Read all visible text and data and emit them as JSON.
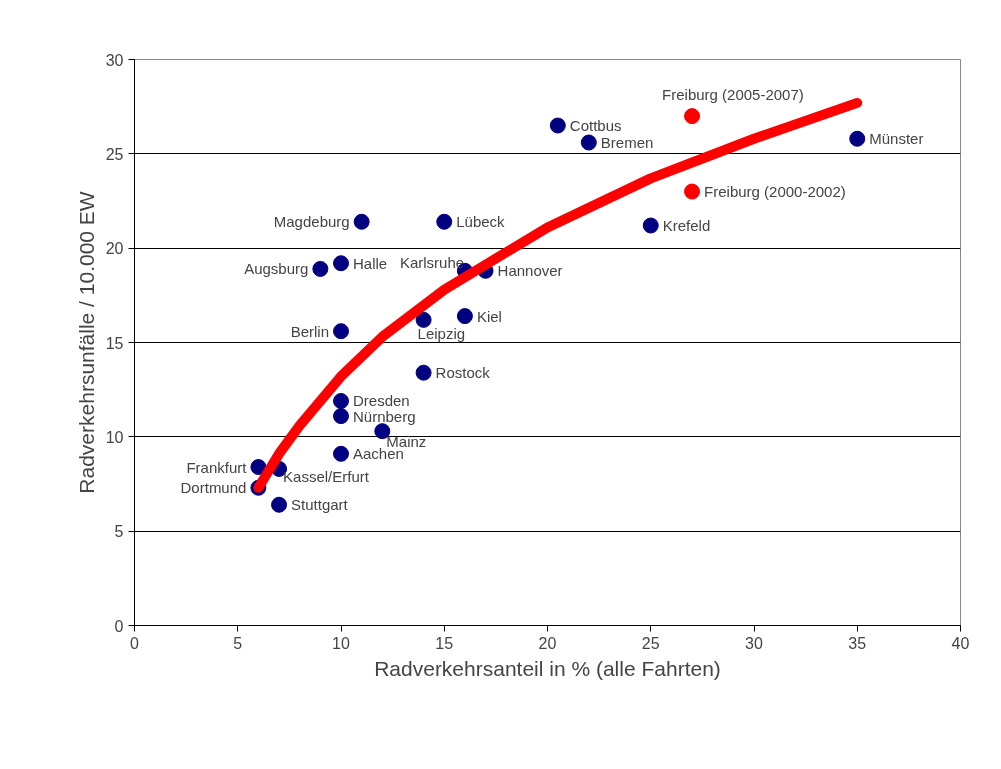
{
  "chart_data": {
    "type": "scatter",
    "xlabel": "Radverkehrsanteil in % (alle Fahrten)",
    "ylabel": "Radverkehrsunfälle / 10.000 EW",
    "xlim": [
      0,
      40
    ],
    "ylim": [
      0,
      30
    ],
    "xticks": [
      0,
      5,
      10,
      15,
      20,
      25,
      30,
      35,
      40
    ],
    "yticks": [
      0,
      5,
      10,
      15,
      20,
      25,
      30
    ],
    "grid": "y",
    "marker": "circle",
    "series": [
      {
        "color": "#000080",
        "x": [
          6,
          6,
          7,
          7,
          10,
          12,
          10,
          10,
          14,
          10,
          14,
          16,
          16,
          17,
          9,
          10,
          11,
          15,
          25,
          20.5,
          22,
          35
        ],
        "values": [
          8.4,
          7.3,
          8.3,
          6.4,
          9.1,
          10.3,
          11.1,
          11.9,
          13.4,
          15.6,
          16.2,
          16.4,
          18.8,
          18.8,
          18.9,
          19.2,
          21.4,
          21.4,
          21.2,
          26.5,
          25.6,
          25.8
        ]
      },
      {
        "color": "#ff0000",
        "x": [
          27,
          27
        ],
        "values": [
          27.0,
          23.0
        ]
      },
      {
        "type": "line",
        "marker": "none",
        "color": "#ff0000",
        "x": [
          6,
          7,
          8,
          10,
          12,
          15,
          20,
          25,
          30,
          35
        ],
        "values": [
          7.3,
          9.1,
          10.6,
          13.2,
          15.3,
          17.8,
          21.1,
          23.7,
          25.8,
          27.7
        ]
      }
    ],
    "annotations": [
      {
        "text": "Frankfurt",
        "x": 6,
        "y": 8.4
      },
      {
        "text": "Dortmund",
        "x": 6,
        "y": 7.3
      },
      {
        "text": "Kassel/Erfurt",
        "x": 7,
        "y": 8.3
      },
      {
        "text": "Stuttgart",
        "x": 7,
        "y": 6.4
      },
      {
        "text": "Aachen",
        "x": 10,
        "y": 9.1
      },
      {
        "text": "Mainz",
        "x": 12,
        "y": 10.3
      },
      {
        "text": "Nürnberg",
        "x": 10,
        "y": 11.1
      },
      {
        "text": "Dresden",
        "x": 10,
        "y": 11.9
      },
      {
        "text": "Rostock",
        "x": 14,
        "y": 13.4
      },
      {
        "text": "Berlin",
        "x": 10,
        "y": 15.6
      },
      {
        "text": "Leipzig",
        "x": 14,
        "y": 16.2
      },
      {
        "text": "Kiel",
        "x": 16,
        "y": 16.4
      },
      {
        "text": "Karlsruhe",
        "x": 16,
        "y": 18.8
      },
      {
        "text": "Hannover",
        "x": 17,
        "y": 18.8
      },
      {
        "text": "Augsburg",
        "x": 9,
        "y": 18.9
      },
      {
        "text": "Halle",
        "x": 10,
        "y": 19.2
      },
      {
        "text": "Magdeburg",
        "x": 11,
        "y": 21.4
      },
      {
        "text": "Lübeck",
        "x": 15,
        "y": 21.4
      },
      {
        "text": "Krefeld",
        "x": 25,
        "y": 21.2
      },
      {
        "text": "Cottbus",
        "x": 20.5,
        "y": 26.5
      },
      {
        "text": "Bremen",
        "x": 22,
        "y": 25.6
      },
      {
        "text": "Münster",
        "x": 35,
        "y": 25.8
      },
      {
        "text": "Freiburg (2005-2007)",
        "x": 27,
        "y": 27.0
      },
      {
        "text": "Freiburg (2000-2002)",
        "x": 27,
        "y": 23.0
      }
    ]
  }
}
